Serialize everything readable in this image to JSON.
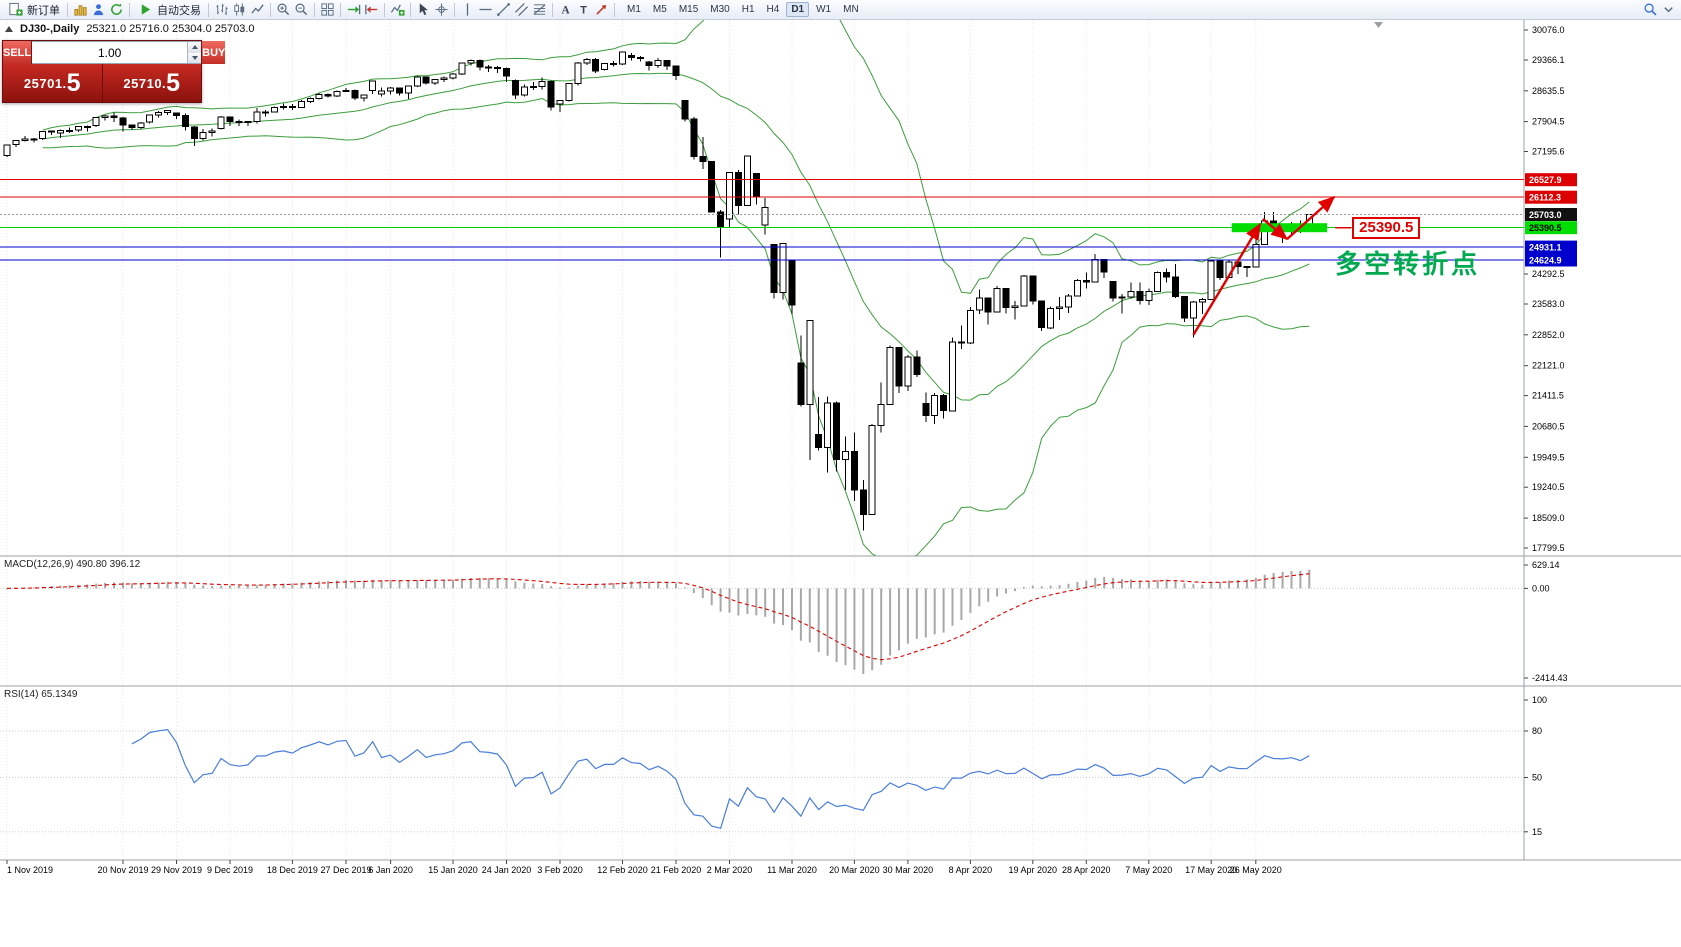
{
  "toolbar": {
    "new_order_label": "新订单",
    "autotrading_label": "自动交易",
    "timeframes": [
      "M1",
      "M5",
      "M15",
      "M30",
      "H1",
      "H4",
      "D1",
      "W1",
      "MN"
    ],
    "active_timeframe": "D1"
  },
  "symbol_info": {
    "name": "DJ30-,Daily",
    "ohlc": "25321.0 25716.0 25304.0 25703.0"
  },
  "trade_panel": {
    "sell_label": "SELL",
    "buy_label": "BUY",
    "volume": "1.00",
    "sell_price": "25701.",
    "sell_price_big": "5",
    "buy_price": "25710.",
    "buy_price_big": "5"
  },
  "annotations": {
    "callout_label": "25390.5",
    "note_text": "多空转折点",
    "note_color": "#00a94f",
    "zone": {
      "from_bar": 137.3,
      "to_bar": 148,
      "price": 25390.5,
      "color": "#00dd00"
    },
    "arrows": [
      {
        "from": {
          "bar": 133,
          "price": 22850
        },
        "to": {
          "bar": 140.5,
          "price": 25480
        }
      },
      {
        "from": {
          "bar": 140.8,
          "price": 25600
        },
        "to": {
          "bar": 143.5,
          "price": 25120
        }
      },
      {
        "from": {
          "bar": 143.5,
          "price": 25120
        },
        "to": {
          "bar": 148.8,
          "price": 26120
        }
      }
    ],
    "arrow_color": "#e00000"
  },
  "price_axis": {
    "ticks": [
      "30076.0",
      "29366.1",
      "28635.5",
      "27904.5",
      "27195.6",
      "24292.5",
      "23583.0",
      "22852.0",
      "22121.0",
      "21411.5",
      "20680.5",
      "19949.5",
      "19240.5",
      "18509.0",
      "17799.5"
    ],
    "lines": [
      {
        "label": "26527.9",
        "price": 26527.9,
        "type": "resistance",
        "line_color": "#dd0000",
        "label_bg": "#dd0000",
        "label_fg": "#ffffff"
      },
      {
        "label": "26112.3",
        "price": 26112.3,
        "type": "resistance",
        "line_color": "#dd0000",
        "label_bg": "#dd0000",
        "label_fg": "#ffffff"
      },
      {
        "label": "25703.0",
        "price": 25703.0,
        "type": "current",
        "line_color": "#999999",
        "label_bg": "#111111",
        "label_fg": "#ffffff"
      },
      {
        "label": "25390.5",
        "price": 25390.5,
        "type": "level",
        "line_color": "#00cc00",
        "label_bg": "#00dd00",
        "label_fg": "#000000"
      },
      {
        "label": "24931.1",
        "price": 24931.1,
        "type": "support",
        "line_color": "#0000cc",
        "label_bg": "#0000cc",
        "label_fg": "#ffffff"
      },
      {
        "label": "24624.9",
        "price": 24624.9,
        "type": "support",
        "line_color": "#0000cc",
        "label_bg": "#0000cc",
        "label_fg": "#ffffff"
      }
    ]
  },
  "macd_panel": {
    "label": "MACD(12,26,9) 490.80 396.12",
    "axis_labels": [
      "629.14",
      "0.00",
      "-2414.43"
    ],
    "params": {
      "fast": 12,
      "slow": 26,
      "signal": 9
    },
    "histogram_color": "#a8a8a8",
    "signal_color": "#e00000"
  },
  "rsi_panel": {
    "label": "RSI(14) 65.1349",
    "axis_labels": [
      "100",
      "80",
      "50",
      "15"
    ],
    "period": 14,
    "levels": [
      80,
      50,
      15
    ],
    "line_color": "#4a7edb"
  },
  "date_axis": [
    {
      "label": "1 Nov 2019",
      "bar": 0
    },
    {
      "label": "20 Nov 2019",
      "bar": 13
    },
    {
      "label": "29 Nov 2019",
      "bar": 19
    },
    {
      "label": "9 Dec 2019",
      "bar": 25
    },
    {
      "label": "18 Dec 2019",
      "bar": 32
    },
    {
      "label": "27 Dec 2019",
      "bar": 38
    },
    {
      "label": "6 Jan 2020",
      "bar": 43
    },
    {
      "label": "15 Jan 2020",
      "bar": 50
    },
    {
      "label": "24 Jan 2020",
      "bar": 56
    },
    {
      "label": "3 Feb 2020",
      "bar": 62
    },
    {
      "label": "12 Feb 2020",
      "bar": 69
    },
    {
      "label": "21 Feb 2020",
      "bar": 75
    },
    {
      "label": "2 Mar 2020",
      "bar": 81
    },
    {
      "label": "11 Mar 2020",
      "bar": 88
    },
    {
      "label": "20 Mar 2020",
      "bar": 95
    },
    {
      "label": "30 Mar 2020",
      "bar": 101
    },
    {
      "label": "8 Apr 2020",
      "bar": 108
    },
    {
      "label": "19 Apr 2020",
      "bar": 115
    },
    {
      "label": "28 Apr 2020",
      "bar": 121
    },
    {
      "label": "7 May 2020",
      "bar": 128
    },
    {
      "label": "17 May 2020",
      "bar": 135
    },
    {
      "label": "26 May 2020",
      "bar": 140
    }
  ],
  "chart_data": {
    "type": "candlestick",
    "symbol": "DJ30-",
    "timeframe": "Daily",
    "price_range": [
      17799.5,
      30076.0
    ],
    "bollinger": {
      "period": 20,
      "deviation": 2,
      "color": "#3c9e3c"
    },
    "candles": [
      [
        27098,
        27367,
        27063,
        27347
      ],
      [
        27361,
        27474,
        27301,
        27462
      ],
      [
        27462,
        27561,
        27430,
        27493
      ],
      [
        27493,
        27516,
        27406,
        27492
      ],
      [
        27509,
        27686,
        27470,
        27675
      ],
      [
        27675,
        27698,
        27588,
        27681
      ],
      [
        27630,
        27714,
        27517,
        27691
      ],
      [
        27691,
        27760,
        27630,
        27691
      ],
      [
        27701,
        27806,
        27655,
        27784
      ],
      [
        27784,
        27808,
        27675,
        27782
      ],
      [
        27812,
        28013,
        27773,
        28005
      ],
      [
        28005,
        28060,
        27937,
        28036
      ],
      [
        28036,
        28121,
        27894,
        28004
      ],
      [
        27994,
        28014,
        27675,
        27821
      ],
      [
        27821,
        27832,
        27709,
        27766
      ],
      [
        27766,
        27899,
        27729,
        27876
      ],
      [
        27894,
        28079,
        27860,
        28066
      ],
      [
        28066,
        28153,
        28004,
        28121
      ],
      [
        28121,
        28175,
        28065,
        28164
      ],
      [
        28109,
        28119,
        27963,
        28051
      ],
      [
        28051,
        28101,
        27689,
        27783
      ],
      [
        27783,
        27806,
        27325,
        27503
      ],
      [
        27503,
        27727,
        27463,
        27650
      ],
      [
        27650,
        27737,
        27553,
        27678
      ],
      [
        27748,
        28035,
        27719,
        28015
      ],
      [
        28015,
        28023,
        27804,
        27910
      ],
      [
        27910,
        27949,
        27804,
        27882
      ],
      [
        27882,
        27925,
        27801,
        27911
      ],
      [
        27911,
        28225,
        27859,
        28132
      ],
      [
        28132,
        28185,
        28030,
        28135
      ],
      [
        28135,
        28261,
        28124,
        28236
      ],
      [
        28236,
        28338,
        28192,
        28267
      ],
      [
        28267,
        28318,
        28184,
        28239
      ],
      [
        28239,
        28414,
        28222,
        28377
      ],
      [
        28377,
        28481,
        28342,
        28455
      ],
      [
        28455,
        28577,
        28425,
        28551
      ],
      [
        28551,
        28572,
        28477,
        28515
      ],
      [
        28515,
        28645,
        28494,
        28621
      ],
      [
        28621,
        28701,
        28608,
        28645
      ],
      [
        28645,
        28664,
        28418,
        28462
      ],
      [
        28462,
        28547,
        28376,
        28538
      ],
      [
        28639,
        28873,
        28565,
        28869
      ],
      [
        28554,
        28717,
        28500,
        28635
      ],
      [
        28635,
        28723,
        28542,
        28703
      ],
      [
        28703,
        28715,
        28523,
        28584
      ],
      [
        28584,
        28761,
        28440,
        28745
      ],
      [
        28745,
        28988,
        28720,
        28957
      ],
      [
        28957,
        28961,
        28790,
        28824
      ],
      [
        28824,
        28919,
        28772,
        28907
      ],
      [
        28907,
        28969,
        28845,
        28939
      ],
      [
        28939,
        29054,
        28897,
        29030
      ],
      [
        29030,
        29300,
        29006,
        29297
      ],
      [
        29297,
        29373,
        29240,
        29348
      ],
      [
        29348,
        29378,
        29117,
        29196
      ],
      [
        29196,
        29243,
        29085,
        29186
      ],
      [
        29186,
        29226,
        29062,
        29160
      ],
      [
        29160,
        29189,
        28843,
        28990
      ],
      [
        28874,
        28906,
        28440,
        28536
      ],
      [
        28536,
        28779,
        28502,
        28723
      ],
      [
        28723,
        28848,
        28653,
        28734
      ],
      [
        28734,
        28945,
        28663,
        28859
      ],
      [
        28859,
        28874,
        28169,
        28256
      ],
      [
        28320,
        28420,
        28130,
        28400
      ],
      [
        28400,
        28822,
        28376,
        28808
      ],
      [
        28808,
        29315,
        28755,
        29291
      ],
      [
        29291,
        29409,
        29241,
        29380
      ],
      [
        29380,
        29408,
        29056,
        29103
      ],
      [
        29143,
        29293,
        29117,
        29277
      ],
      [
        29277,
        29342,
        29212,
        29276
      ],
      [
        29276,
        29568,
        29250,
        29551
      ],
      [
        29471,
        29535,
        29348,
        29423
      ],
      [
        29423,
        29463,
        29332,
        29398
      ],
      [
        29320,
        29339,
        29117,
        29232
      ],
      [
        29232,
        29409,
        29180,
        29348
      ],
      [
        29348,
        29368,
        29133,
        29220
      ],
      [
        29220,
        29230,
        28892,
        28992
      ],
      [
        28402,
        28403,
        27912,
        27961
      ],
      [
        27961,
        28020,
        27003,
        27081
      ],
      [
        27081,
        27542,
        26777,
        26958
      ],
      [
        26958,
        26959,
        25752,
        25767
      ],
      [
        25767,
        25806,
        24681,
        25409
      ],
      [
        25591,
        26706,
        25392,
        26703
      ],
      [
        26703,
        26763,
        25707,
        25917
      ],
      [
        25917,
        27102,
        25907,
        27091
      ],
      [
        26671,
        26671,
        25944,
        26121
      ],
      [
        25458,
        26092,
        25227,
        25865
      ],
      [
        24992,
        24992,
        23707,
        23851
      ],
      [
        23851,
        25020,
        23690,
        25018
      ],
      [
        24604,
        24604,
        23328,
        23553
      ],
      [
        22184,
        22837,
        21154,
        21201
      ],
      [
        21201,
        23189,
        19882,
        23186
      ],
      [
        20488,
        21379,
        20116,
        20188
      ],
      [
        20188,
        21394,
        19591,
        21237
      ],
      [
        21237,
        21269,
        19610,
        19899
      ],
      [
        19899,
        20442,
        19177,
        20087
      ],
      [
        20087,
        20531,
        18917,
        19174
      ],
      [
        19174,
        19409,
        18214,
        18592
      ],
      [
        18592,
        20738,
        18592,
        20705
      ],
      [
        20705,
        21721,
        20538,
        21200
      ],
      [
        21200,
        22595,
        21200,
        22552
      ],
      [
        22552,
        22552,
        21469,
        21637
      ],
      [
        21637,
        22378,
        21522,
        22327
      ],
      [
        22327,
        22482,
        21853,
        21917
      ],
      [
        21227,
        21487,
        20784,
        20944
      ],
      [
        20944,
        21477,
        20735,
        21413
      ],
      [
        21413,
        21447,
        20863,
        21053
      ],
      [
        21053,
        22783,
        21053,
        22680
      ],
      [
        22680,
        23073,
        22521,
        22654
      ],
      [
        22654,
        23513,
        22634,
        23434
      ],
      [
        23434,
        23923,
        23351,
        23719
      ],
      [
        23719,
        23738,
        23096,
        23391
      ],
      [
        23391,
        24009,
        23391,
        23950
      ],
      [
        23950,
        23954,
        23361,
        23504
      ],
      [
        23504,
        23654,
        23214,
        23538
      ],
      [
        23538,
        24264,
        23538,
        24242
      ],
      [
        24242,
        24253,
        23565,
        23650
      ],
      [
        23650,
        23667,
        22941,
        23019
      ],
      [
        23019,
        23526,
        22990,
        23476
      ],
      [
        23476,
        23752,
        23204,
        23515
      ],
      [
        23515,
        23818,
        23371,
        23775
      ],
      [
        23775,
        24175,
        23775,
        24134
      ],
      [
        24134,
        24327,
        23947,
        24102
      ],
      [
        24102,
        24765,
        24102,
        24634
      ],
      [
        24634,
        24635,
        24201,
        24346
      ],
      [
        24120,
        24121,
        23645,
        23724
      ],
      [
        23724,
        23825,
        23361,
        23750
      ],
      [
        23750,
        24094,
        23710,
        23883
      ],
      [
        23883,
        24094,
        23569,
        23665
      ],
      [
        23665,
        23944,
        23554,
        23876
      ],
      [
        23876,
        24349,
        23876,
        24331
      ],
      [
        24331,
        24428,
        24093,
        24222
      ],
      [
        24222,
        24532,
        23725,
        23765
      ],
      [
        23765,
        23773,
        23151,
        23248
      ],
      [
        23248,
        23653,
        22790,
        23625
      ],
      [
        23625,
        23727,
        23340,
        23685
      ],
      [
        23685,
        24612,
        23685,
        24597
      ],
      [
        24597,
        24602,
        24146,
        24207
      ],
      [
        24207,
        24626,
        24195,
        24576
      ],
      [
        24576,
        24602,
        24288,
        24474
      ],
      [
        24474,
        24482,
        24224,
        24465
      ],
      [
        24465,
        25176,
        24465,
        24995
      ],
      [
        24995,
        25758,
        24985,
        25548
      ],
      [
        25548,
        25759,
        25333,
        25401
      ],
      [
        25401,
        25419,
        25032,
        25383
      ],
      [
        25342,
        25527,
        25236,
        25475
      ],
      [
        25475,
        25560,
        25260,
        25342
      ],
      [
        25321,
        25716,
        25304,
        25703
      ]
    ]
  }
}
